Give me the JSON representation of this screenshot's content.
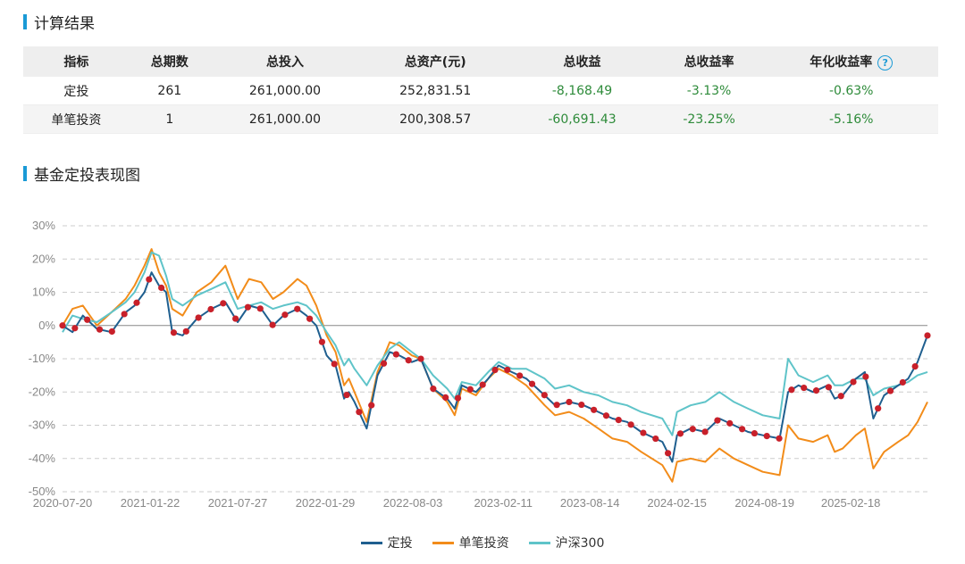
{
  "section1": {
    "title": "计算结果"
  },
  "table": {
    "headers": [
      "指标",
      "总期数",
      "总投入",
      "总资产(元)",
      "总收益",
      "总收益率",
      "年化收益率"
    ],
    "rows": [
      [
        "定投",
        "261",
        "261,000.00",
        "252,831.51",
        "-8,168.49",
        "-3.13%",
        "-0.63%"
      ],
      [
        "单笔投资",
        "1",
        "261,000.00",
        "200,308.57",
        "-60,691.43",
        "-23.25%",
        "-5.16%"
      ]
    ],
    "help_icon": "?"
  },
  "section2": {
    "title": "基金定投表现图"
  },
  "colors": {
    "accent": "#1a9ad6",
    "dingtou": "#1f5f8f",
    "danbi": "#f28c1a",
    "hs300": "#5fc4c9",
    "marker": "#c8202a",
    "negative": "#2e8b3a"
  },
  "chart_data": {
    "type": "line",
    "ylim": [
      -50,
      30
    ],
    "yticks": [
      "30%",
      "20%",
      "10%",
      "0%",
      "-10%",
      "-20%",
      "-30%",
      "-40%",
      "-50%"
    ],
    "xticks": [
      "2020-07-20",
      "2021-01-22",
      "2021-07-27",
      "2022-01-29",
      "2022-08-03",
      "2023-02-11",
      "2023-08-14",
      "2024-02-15",
      "2024-08-19",
      "2025-02-18"
    ],
    "x_range": [
      "2020-07-20",
      "2025-07-31"
    ],
    "series": [
      {
        "name": "定投",
        "color": "#1f5f8f",
        "points": [
          [
            "2020-07-20",
            0
          ],
          [
            "2020-08-10",
            -2
          ],
          [
            "2020-09-01",
            3
          ],
          [
            "2020-10-01",
            -1
          ],
          [
            "2020-11-01",
            -2
          ],
          [
            "2020-12-01",
            4
          ],
          [
            "2020-12-20",
            6
          ],
          [
            "2021-01-10",
            10
          ],
          [
            "2021-01-25",
            16
          ],
          [
            "2021-02-10",
            12
          ],
          [
            "2021-02-25",
            10
          ],
          [
            "2021-03-10",
            -2
          ],
          [
            "2021-04-01",
            -3
          ],
          [
            "2021-05-01",
            2
          ],
          [
            "2021-06-01",
            5
          ],
          [
            "2021-07-01",
            7
          ],
          [
            "2021-07-27",
            1
          ],
          [
            "2021-08-20",
            6
          ],
          [
            "2021-09-15",
            5
          ],
          [
            "2021-10-10",
            0
          ],
          [
            "2021-11-01",
            3
          ],
          [
            "2021-12-01",
            5
          ],
          [
            "2021-12-20",
            3
          ],
          [
            "2022-01-10",
            0
          ],
          [
            "2022-02-01",
            -9
          ],
          [
            "2022-02-20",
            -12
          ],
          [
            "2022-03-10",
            -22
          ],
          [
            "2022-03-20",
            -20
          ],
          [
            "2022-04-01",
            -23
          ],
          [
            "2022-04-27",
            -31
          ],
          [
            "2022-05-20",
            -15
          ],
          [
            "2022-06-15",
            -8
          ],
          [
            "2022-07-05",
            -9
          ],
          [
            "2022-08-01",
            -11
          ],
          [
            "2022-08-20",
            -10
          ],
          [
            "2022-09-15",
            -19
          ],
          [
            "2022-10-15",
            -22
          ],
          [
            "2022-10-31",
            -25
          ],
          [
            "2022-11-15",
            -18
          ],
          [
            "2022-12-15",
            -20
          ],
          [
            "2023-01-10",
            -16
          ],
          [
            "2023-02-01",
            -12
          ],
          [
            "2023-03-01",
            -14
          ],
          [
            "2023-04-01",
            -16
          ],
          [
            "2023-05-10",
            -21
          ],
          [
            "2023-06-01",
            -24
          ],
          [
            "2023-07-01",
            -23
          ],
          [
            "2023-08-01",
            -24
          ],
          [
            "2023-09-01",
            -26
          ],
          [
            "2023-10-01",
            -28
          ],
          [
            "2023-11-01",
            -29
          ],
          [
            "2023-12-01",
            -32
          ],
          [
            "2024-01-15",
            -35
          ],
          [
            "2024-02-05",
            -41
          ],
          [
            "2024-02-15",
            -33
          ],
          [
            "2024-03-15",
            -31
          ],
          [
            "2024-04-15",
            -32
          ],
          [
            "2024-05-15",
            -28
          ],
          [
            "2024-06-15",
            -30
          ],
          [
            "2024-07-15",
            -32
          ],
          [
            "2024-08-15",
            -33
          ],
          [
            "2024-09-20",
            -34
          ],
          [
            "2024-10-08",
            -20
          ],
          [
            "2024-10-30",
            -18
          ],
          [
            "2024-11-30",
            -20
          ],
          [
            "2024-12-31",
            -18
          ],
          [
            "2025-01-15",
            -22
          ],
          [
            "2025-02-01",
            -21
          ],
          [
            "2025-03-01",
            -16
          ],
          [
            "2025-03-20",
            -14
          ],
          [
            "2025-04-07",
            -28
          ],
          [
            "2025-04-30",
            -21
          ],
          [
            "2025-05-30",
            -18
          ],
          [
            "2025-06-20",
            -16
          ],
          [
            "2025-07-10",
            -11
          ],
          [
            "2025-07-31",
            -3
          ]
        ]
      },
      {
        "name": "单笔投资",
        "color": "#f28c1a",
        "points": [
          [
            "2020-07-20",
            0
          ],
          [
            "2020-08-10",
            5
          ],
          [
            "2020-09-01",
            6
          ],
          [
            "2020-10-01",
            0
          ],
          [
            "2020-11-01",
            4
          ],
          [
            "2020-12-01",
            8
          ],
          [
            "2020-12-20",
            12
          ],
          [
            "2021-01-10",
            18
          ],
          [
            "2021-01-25",
            23
          ],
          [
            "2021-02-10",
            16
          ],
          [
            "2021-02-25",
            12
          ],
          [
            "2021-03-10",
            5
          ],
          [
            "2021-04-01",
            3
          ],
          [
            "2021-05-01",
            10
          ],
          [
            "2021-06-01",
            13
          ],
          [
            "2021-07-01",
            18
          ],
          [
            "2021-07-27",
            8
          ],
          [
            "2021-08-20",
            14
          ],
          [
            "2021-09-15",
            13
          ],
          [
            "2021-10-10",
            8
          ],
          [
            "2021-11-01",
            10
          ],
          [
            "2021-12-01",
            14
          ],
          [
            "2021-12-20",
            12
          ],
          [
            "2022-01-10",
            6
          ],
          [
            "2022-02-01",
            -3
          ],
          [
            "2022-02-20",
            -8
          ],
          [
            "2022-03-10",
            -18
          ],
          [
            "2022-03-20",
            -16
          ],
          [
            "2022-04-01",
            -20
          ],
          [
            "2022-04-27",
            -29
          ],
          [
            "2022-05-20",
            -14
          ],
          [
            "2022-06-15",
            -5
          ],
          [
            "2022-07-05",
            -6
          ],
          [
            "2022-08-01",
            -9
          ],
          [
            "2022-08-20",
            -10
          ],
          [
            "2022-09-15",
            -19
          ],
          [
            "2022-10-15",
            -23
          ],
          [
            "2022-10-31",
            -27
          ],
          [
            "2022-11-15",
            -19
          ],
          [
            "2022-12-15",
            -21
          ],
          [
            "2023-01-10",
            -16
          ],
          [
            "2023-02-01",
            -13
          ],
          [
            "2023-03-01",
            -15
          ],
          [
            "2023-04-01",
            -18
          ],
          [
            "2023-05-10",
            -24
          ],
          [
            "2023-06-01",
            -27
          ],
          [
            "2023-07-01",
            -26
          ],
          [
            "2023-08-01",
            -28
          ],
          [
            "2023-09-01",
            -31
          ],
          [
            "2023-10-01",
            -34
          ],
          [
            "2023-11-01",
            -35
          ],
          [
            "2023-12-01",
            -38
          ],
          [
            "2024-01-15",
            -42
          ],
          [
            "2024-02-05",
            -47
          ],
          [
            "2024-02-15",
            -41
          ],
          [
            "2024-03-15",
            -40
          ],
          [
            "2024-04-15",
            -41
          ],
          [
            "2024-05-15",
            -37
          ],
          [
            "2024-06-15",
            -40
          ],
          [
            "2024-07-15",
            -42
          ],
          [
            "2024-08-15",
            -44
          ],
          [
            "2024-09-20",
            -45
          ],
          [
            "2024-10-08",
            -30
          ],
          [
            "2024-10-30",
            -34
          ],
          [
            "2024-11-30",
            -35
          ],
          [
            "2024-12-31",
            -33
          ],
          [
            "2025-01-15",
            -38
          ],
          [
            "2025-02-01",
            -37
          ],
          [
            "2025-03-01",
            -33
          ],
          [
            "2025-03-20",
            -31
          ],
          [
            "2025-04-07",
            -43
          ],
          [
            "2025-04-30",
            -38
          ],
          [
            "2025-05-30",
            -35
          ],
          [
            "2025-06-20",
            -33
          ],
          [
            "2025-07-10",
            -29
          ],
          [
            "2025-07-31",
            -23
          ]
        ]
      },
      {
        "name": "沪深300",
        "color": "#5fc4c9",
        "points": [
          [
            "2020-07-20",
            -2
          ],
          [
            "2020-08-10",
            3
          ],
          [
            "2020-09-01",
            2
          ],
          [
            "2020-10-01",
            1
          ],
          [
            "2020-11-01",
            4
          ],
          [
            "2020-12-01",
            7
          ],
          [
            "2020-12-20",
            10
          ],
          [
            "2021-01-10",
            16
          ],
          [
            "2021-01-25",
            22
          ],
          [
            "2021-02-10",
            21
          ],
          [
            "2021-02-25",
            15
          ],
          [
            "2021-03-10",
            8
          ],
          [
            "2021-04-01",
            6
          ],
          [
            "2021-05-01",
            9
          ],
          [
            "2021-06-01",
            11
          ],
          [
            "2021-07-01",
            13
          ],
          [
            "2021-07-27",
            5
          ],
          [
            "2021-08-20",
            6
          ],
          [
            "2021-09-15",
            7
          ],
          [
            "2021-10-10",
            5
          ],
          [
            "2021-11-01",
            6
          ],
          [
            "2021-12-01",
            7
          ],
          [
            "2021-12-20",
            6
          ],
          [
            "2022-01-10",
            3
          ],
          [
            "2022-02-01",
            -2
          ],
          [
            "2022-02-20",
            -6
          ],
          [
            "2022-03-10",
            -12
          ],
          [
            "2022-03-20",
            -10
          ],
          [
            "2022-04-01",
            -13
          ],
          [
            "2022-04-27",
            -18
          ],
          [
            "2022-05-20",
            -12
          ],
          [
            "2022-06-15",
            -7
          ],
          [
            "2022-07-05",
            -5
          ],
          [
            "2022-08-01",
            -8
          ],
          [
            "2022-08-20",
            -10
          ],
          [
            "2022-09-15",
            -15
          ],
          [
            "2022-10-15",
            -19
          ],
          [
            "2022-10-31",
            -22
          ],
          [
            "2022-11-15",
            -17
          ],
          [
            "2022-12-15",
            -18
          ],
          [
            "2023-01-10",
            -14
          ],
          [
            "2023-02-01",
            -11
          ],
          [
            "2023-03-01",
            -13
          ],
          [
            "2023-04-01",
            -13
          ],
          [
            "2023-05-10",
            -16
          ],
          [
            "2023-06-01",
            -19
          ],
          [
            "2023-07-01",
            -18
          ],
          [
            "2023-08-01",
            -20
          ],
          [
            "2023-09-01",
            -21
          ],
          [
            "2023-10-01",
            -23
          ],
          [
            "2023-11-01",
            -24
          ],
          [
            "2023-12-01",
            -26
          ],
          [
            "2024-01-15",
            -28
          ],
          [
            "2024-02-05",
            -33
          ],
          [
            "2024-02-15",
            -26
          ],
          [
            "2024-03-15",
            -24
          ],
          [
            "2024-04-15",
            -23
          ],
          [
            "2024-05-15",
            -20
          ],
          [
            "2024-06-15",
            -23
          ],
          [
            "2024-07-15",
            -25
          ],
          [
            "2024-08-15",
            -27
          ],
          [
            "2024-09-20",
            -28
          ],
          [
            "2024-10-08",
            -10
          ],
          [
            "2024-10-30",
            -15
          ],
          [
            "2024-11-30",
            -17
          ],
          [
            "2024-12-31",
            -15
          ],
          [
            "2025-01-15",
            -18
          ],
          [
            "2025-02-01",
            -18
          ],
          [
            "2025-03-01",
            -16
          ],
          [
            "2025-03-20",
            -16
          ],
          [
            "2025-04-07",
            -21
          ],
          [
            "2025-04-30",
            -19
          ],
          [
            "2025-05-30",
            -18
          ],
          [
            "2025-06-20",
            -17
          ],
          [
            "2025-07-10",
            -15
          ],
          [
            "2025-07-31",
            -14
          ]
        ]
      }
    ],
    "legend_position": "bottom-center",
    "grid": true
  }
}
